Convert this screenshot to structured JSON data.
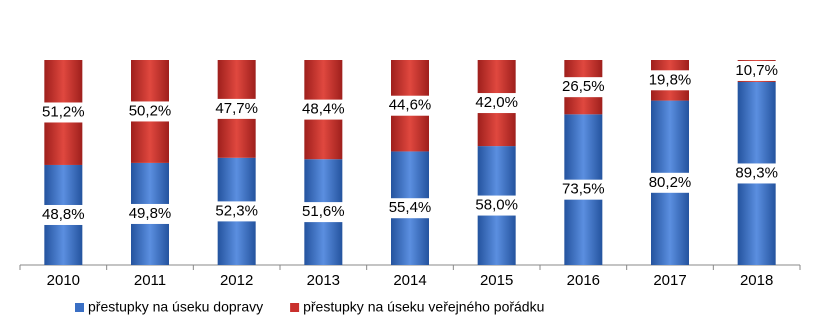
{
  "chart_data": {
    "type": "bar",
    "stacked": true,
    "categories": [
      "2010",
      "2011",
      "2012",
      "2013",
      "2014",
      "2015",
      "2016",
      "2017",
      "2018"
    ],
    "series": [
      {
        "name": "přestupky na úseku dopravy",
        "color": "#3a6fc4",
        "values": [
          48.8,
          49.8,
          52.3,
          51.6,
          55.4,
          58.0,
          73.5,
          80.2,
          89.3
        ],
        "value_labels": [
          "48,8%",
          "49,8%",
          "52,3%",
          "51,6%",
          "55,4%",
          "58,0%",
          "73,5%",
          "80,2%",
          "89,3%"
        ]
      },
      {
        "name": "přestupky na úseku veřejného pořádku",
        "color": "#c9302c",
        "values": [
          51.2,
          50.2,
          47.7,
          48.4,
          44.6,
          42.0,
          26.5,
          19.8,
          10.7
        ],
        "value_labels": [
          "51,2%",
          "50,2%",
          "47,7%",
          "48,4%",
          "44,6%",
          "42,0%",
          "26,5%",
          "19,8%",
          "10,7%"
        ]
      }
    ],
    "ylim": [
      0,
      100
    ],
    "legend": "bottom"
  }
}
